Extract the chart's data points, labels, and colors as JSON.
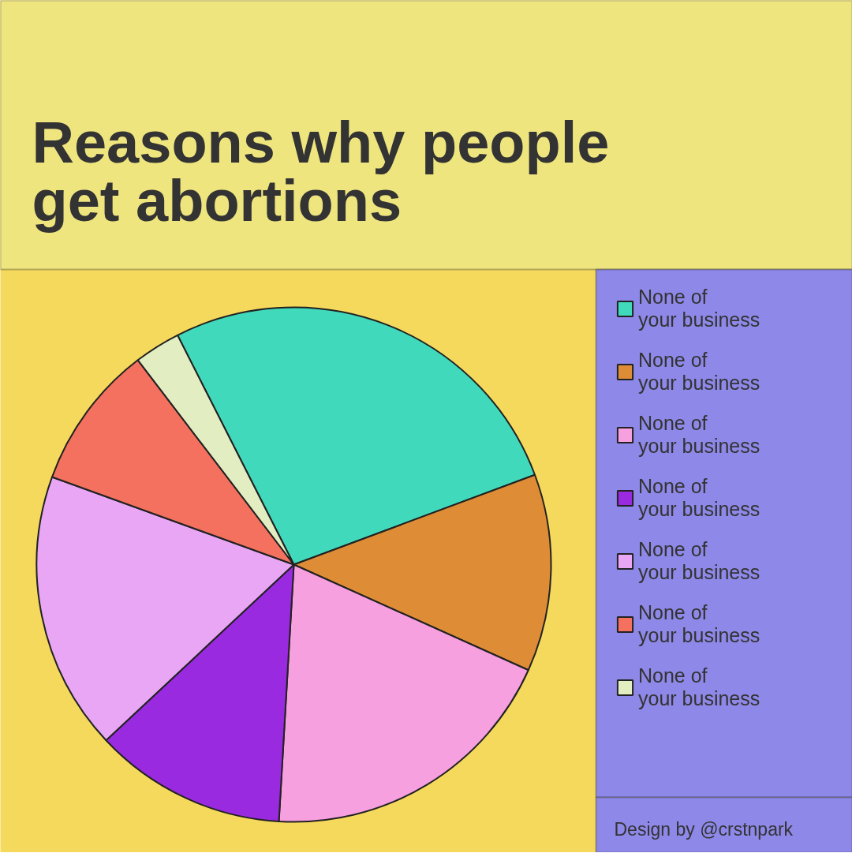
{
  "chart_data": {
    "type": "pie",
    "title": "Reasons why people\nget abortions",
    "categories": [
      "None of\nyour business",
      "None of\nyour business",
      "None of\nyour business",
      "None of\nyour business",
      "None of\nyour business",
      "None of\nyour business",
      "None of\nyour business"
    ],
    "values": [
      26.8,
      12.4,
      19.2,
      12.1,
      17.5,
      9.1,
      2.9
    ],
    "colors": [
      "#41d9bb",
      "#de8d36",
      "#f7a0e0",
      "#9a2ae0",
      "#e8a6f4",
      "#f3715e",
      "#e2eec2"
    ],
    "legend": "right",
    "annotations": [
      "Design by @crstnpark"
    ]
  }
}
